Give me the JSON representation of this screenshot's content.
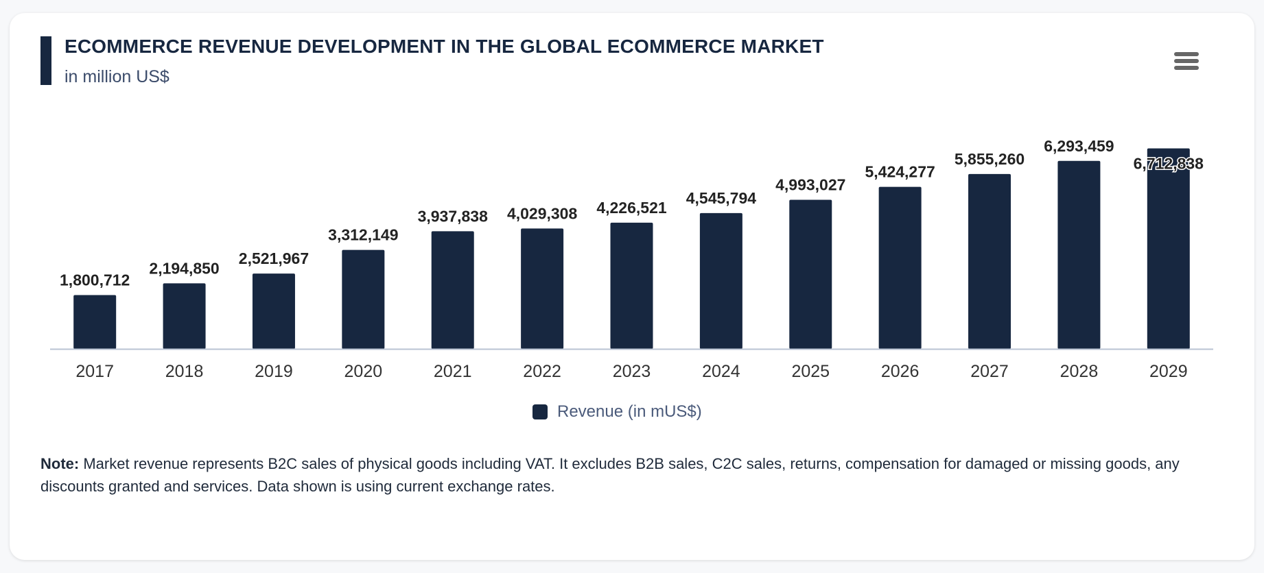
{
  "header": {
    "title": "ECOMMERCE REVENUE DEVELOPMENT IN THE GLOBAL ECOMMERCE MARKET",
    "subtitle": "in million US$",
    "menu_icon": "hamburger-menu-icon"
  },
  "colors": {
    "bar": "#172740",
    "background": "#f7f8fa",
    "axis": "#b9c3d3"
  },
  "chart_data": {
    "type": "bar",
    "title": "ECOMMERCE REVENUE DEVELOPMENT IN THE GLOBAL ECOMMERCE MARKET",
    "subtitle": "in million US$",
    "categories": [
      "2017",
      "2018",
      "2019",
      "2020",
      "2021",
      "2022",
      "2023",
      "2024",
      "2025",
      "2026",
      "2027",
      "2028",
      "2029"
    ],
    "series": [
      {
        "name": "Revenue (in mUS$)",
        "values": [
          1800712,
          2194850,
          2521967,
          3312149,
          3937838,
          4029308,
          4226521,
          4545794,
          4993027,
          5424277,
          5855260,
          6293459,
          6712838
        ],
        "labels": [
          "1,800,712",
          "2,194,850",
          "2,521,967",
          "3,312,149",
          "3,937,838",
          "4,029,308",
          "4,226,521",
          "4,545,794",
          "4,993,027",
          "5,424,277",
          "5,855,260",
          "6,293,459",
          "6,712,838"
        ]
      }
    ],
    "xlabel": "",
    "ylabel": "",
    "ylim": [
      0,
      7000000
    ],
    "grid": false,
    "legend": "bottom-center"
  },
  "legend": {
    "label": "Revenue (in mUS$)"
  },
  "note": {
    "label": "Note:",
    "text": " Market revenue represents B2C sales of physical goods including VAT. It excludes B2B sales, C2C sales, returns, compensation for damaged or missing goods, any discounts granted and services. Data shown is using current exchange rates."
  }
}
